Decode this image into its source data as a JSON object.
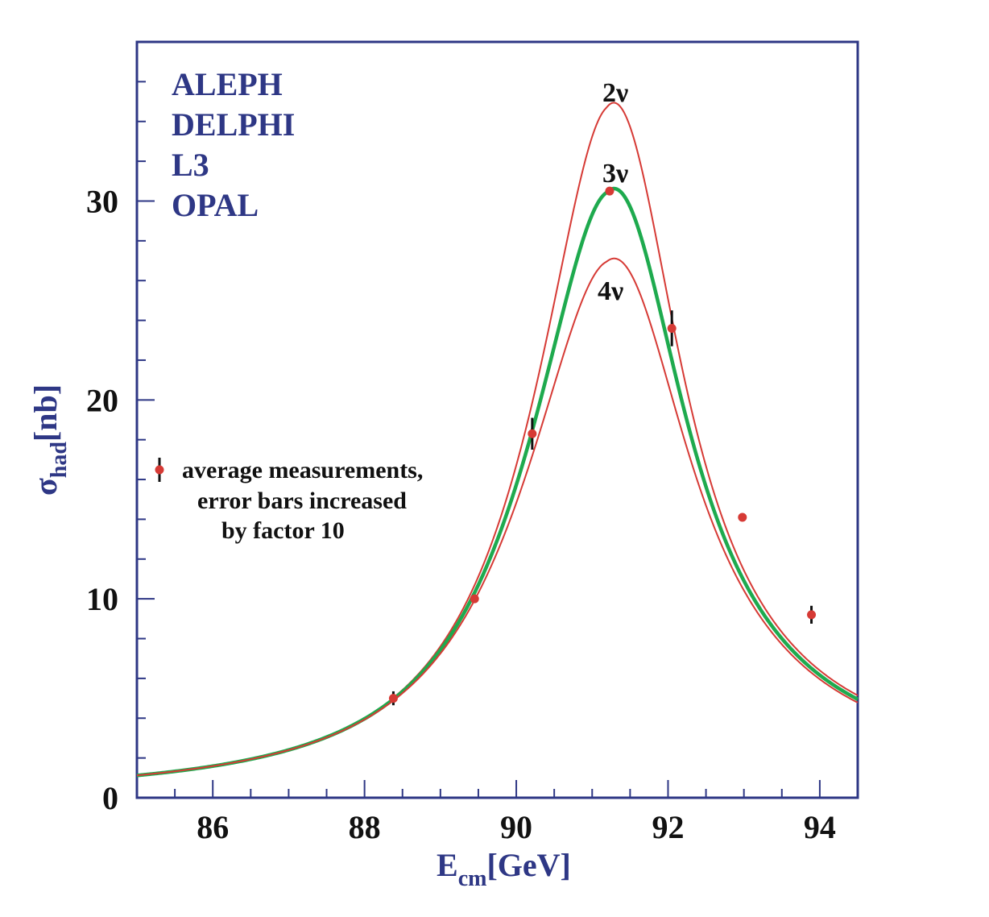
{
  "chart_data": {
    "type": "line",
    "xlabel": {
      "main": "E",
      "sub": "cm",
      "unit": "[GeV]"
    },
    "ylabel": {
      "main": "σ",
      "sub": "had",
      "unit": "[nb]"
    },
    "xlim": [
      85.0,
      94.5
    ],
    "ylim": [
      0,
      38
    ],
    "x_ticks": [
      86,
      88,
      90,
      92,
      94
    ],
    "y_ticks": [
      0,
      10,
      20,
      30
    ],
    "experiments": [
      "ALEPH",
      "DELPHI",
      "L3",
      "OPAL"
    ],
    "series": [
      {
        "name": "2ν",
        "color": "#d63a35",
        "peak": 34.8
      },
      {
        "name": "3ν",
        "color": "#1eaa4e",
        "peak": 30.5
      },
      {
        "name": "4ν",
        "color": "#d63a35",
        "peak": 27.0
      }
    ],
    "curve_params": {
      "mass": 91.19,
      "width_3nu": 2.5,
      "width_step": 0.167
    },
    "measurements": [
      {
        "x": 88.38,
        "y": 5.0,
        "err": 0.35
      },
      {
        "x": 89.45,
        "y": 10.0,
        "err": 0.15
      },
      {
        "x": 90.21,
        "y": 18.3,
        "err": 0.8
      },
      {
        "x": 91.23,
        "y": 30.5,
        "err": 0.15
      },
      {
        "x": 92.05,
        "y": 23.6,
        "err": 0.9
      },
      {
        "x": 92.98,
        "y": 14.1,
        "err": 0.15
      },
      {
        "x": 93.89,
        "y": 9.2,
        "err": 0.45
      }
    ],
    "legend": {
      "lines": [
        "average measurements,",
        "error bars increased",
        "by factor 10"
      ]
    },
    "grid": false
  }
}
